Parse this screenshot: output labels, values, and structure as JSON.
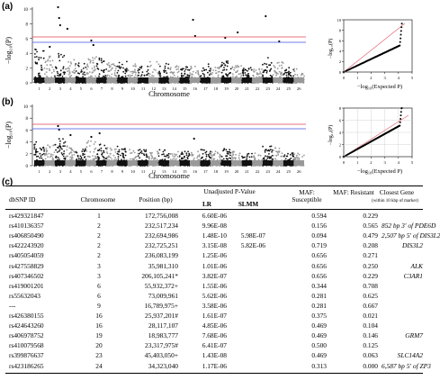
{
  "panels": {
    "a": {
      "label": "(a)"
    },
    "b": {
      "label": "(b)"
    },
    "c": {
      "label": "(c)"
    }
  },
  "manhattan": {
    "ylabel": "−log₁₀(P)",
    "xlabel": "Chromosome",
    "a_yticks": [
      "10",
      "8",
      "6",
      "4",
      "2",
      "0"
    ],
    "b_yticks": [
      "10",
      "8",
      "6",
      "4",
      "2",
      "0"
    ],
    "chrom_labels": [
      "1",
      "2",
      "3",
      "4",
      "5",
      "6",
      "7",
      "8",
      "9",
      "10",
      "11",
      "12",
      "13",
      "14",
      "15",
      "16",
      "17",
      "18",
      "19",
      "20",
      "21",
      "22",
      "23",
      "24",
      "25",
      "26"
    ],
    "a_chrom_labels": [
      "1",
      "2",
      "3",
      "4",
      "5",
      "6",
      "7",
      "8",
      "9",
      "10",
      "11",
      "12",
      "13",
      "14",
      "15",
      "16",
      "17",
      "18",
      "19",
      "20",
      "21",
      "22",
      "23",
      "24",
      "25",
      "26"
    ],
    "threshold_colors": {
      "red": "#e04050",
      "blue": "#4050e0"
    },
    "series_colors": {
      "dark": "#111111",
      "light": "#999999"
    }
  },
  "qq": {
    "ylabel": "−log₁₀(P)",
    "xlabel": "−log₁₀(Expected P)",
    "a_yticks": [
      "10",
      "8",
      "6",
      "4",
      "2",
      "0"
    ],
    "a_xticks": [
      "0",
      "1",
      "2",
      "3",
      "4",
      "5"
    ],
    "b_yticks": [
      "8",
      "6",
      "4",
      "2",
      "0"
    ],
    "b_xticks": [
      "0",
      "1",
      "2",
      "3",
      "4",
      "5"
    ]
  },
  "table": {
    "headers": {
      "dbsnp": "dbSNP ID",
      "chromosome": "Chromosome",
      "position": "Position (bp)",
      "unadjusted": "Unadjusted P-Value",
      "lr": "LR",
      "slmm": "SLMM",
      "maf_s": "MAF: Susceptible",
      "maf_r": "MAF: Resistant",
      "gene": "Closest Gene",
      "gene_sub": "(within 10 kbp of marker)"
    },
    "rows": [
      {
        "id": "rs429321847",
        "chr": "1",
        "pos": "172,756,008",
        "lr": "6.60E-06",
        "slmm": "",
        "ms": "0.594",
        "mr": "0.229",
        "gene": ""
      },
      {
        "id": "rs410136357",
        "chr": "2",
        "pos": "232,517,234",
        "lr": "9.96E-08",
        "slmm": "",
        "ms": "0.156",
        "mr": "0.565",
        "gene": "852 bp 3′ of PDE6D"
      },
      {
        "id": "rs406850490",
        "chr": "2",
        "pos": "232,694,986",
        "lr": "1.48E-10",
        "slmm": "5.98E-07",
        "ms": "0.094",
        "mr": "0.479",
        "gene": "2,507 bp 5′ of DIS3L2"
      },
      {
        "id": "rs422243920",
        "chr": "2",
        "pos": "232,725,251",
        "lr": "3.15E-08",
        "slmm": "5.82E-06",
        "ms": "0.719",
        "mr": "0.208",
        "gene": "DIS3L2"
      },
      {
        "id": "rs405054059",
        "chr": "2",
        "pos": "236,083,199",
        "lr": "1.25E-06",
        "slmm": "",
        "ms": "0.656",
        "mr": "0.271",
        "gene": ""
      },
      {
        "id": "rs427558829",
        "chr": "3",
        "pos": "35,981,310",
        "lr": "1.01E-06",
        "slmm": "",
        "ms": "0.656",
        "mr": "0.250",
        "gene": "ALK"
      },
      {
        "id": "rs407346502",
        "chr": "3",
        "pos": "206,105,241*",
        "lr": "3.82E-07",
        "slmm": "",
        "ms": "0.656",
        "mr": "0.229",
        "gene": "C3AR1"
      },
      {
        "id": "rs419001201",
        "chr": "6",
        "pos": "55,932,372+",
        "lr": "1.55E-06",
        "slmm": "",
        "ms": "0.344",
        "mr": "0.708",
        "gene": ""
      },
      {
        "id": "rs55632043",
        "chr": "6",
        "pos": "73,009,961",
        "lr": "5.62E-06",
        "slmm": "",
        "ms": "0.281",
        "mr": "0.625",
        "gene": ""
      },
      {
        "id": "---",
        "chr": "9",
        "pos": "16,789,975+",
        "lr": "3.58E-06",
        "slmm": "",
        "ms": "0.281",
        "mr": "0.667",
        "gene": ""
      },
      {
        "id": "rs426380155",
        "chr": "16",
        "pos": "25,937,201#",
        "lr": "1.61E-07",
        "slmm": "",
        "ms": "0.375",
        "mr": "0.021",
        "gene": ""
      },
      {
        "id": "rs424643260",
        "chr": "16",
        "pos": "28,117,107",
        "lr": "4.85E-06",
        "slmm": "",
        "ms": "0.469",
        "mr": "0.104",
        "gene": ""
      },
      {
        "id": "rs406978752",
        "chr": "19",
        "pos": "18,983,777",
        "lr": "7.68E-06",
        "slmm": "",
        "ms": "0.469",
        "mr": "0.146",
        "gene": "GRM7"
      },
      {
        "id": "rs410079568",
        "chr": "20",
        "pos": "23,317,975#",
        "lr": "6.41E-07",
        "slmm": "",
        "ms": "0.500",
        "mr": "0.125",
        "gene": ""
      },
      {
        "id": "rs399876637",
        "chr": "23",
        "pos": "45,403,050+",
        "lr": "1.43E-08",
        "slmm": "",
        "ms": "0.469",
        "mr": "0.063",
        "gene": "SLC14A2"
      },
      {
        "id": "rs423186265",
        "chr": "24",
        "pos": "34,323,040",
        "lr": "1.17E-06",
        "slmm": "",
        "ms": "0.313",
        "mr": "0.000",
        "gene": "6,587 bp 5′ of ZP3"
      }
    ]
  }
}
